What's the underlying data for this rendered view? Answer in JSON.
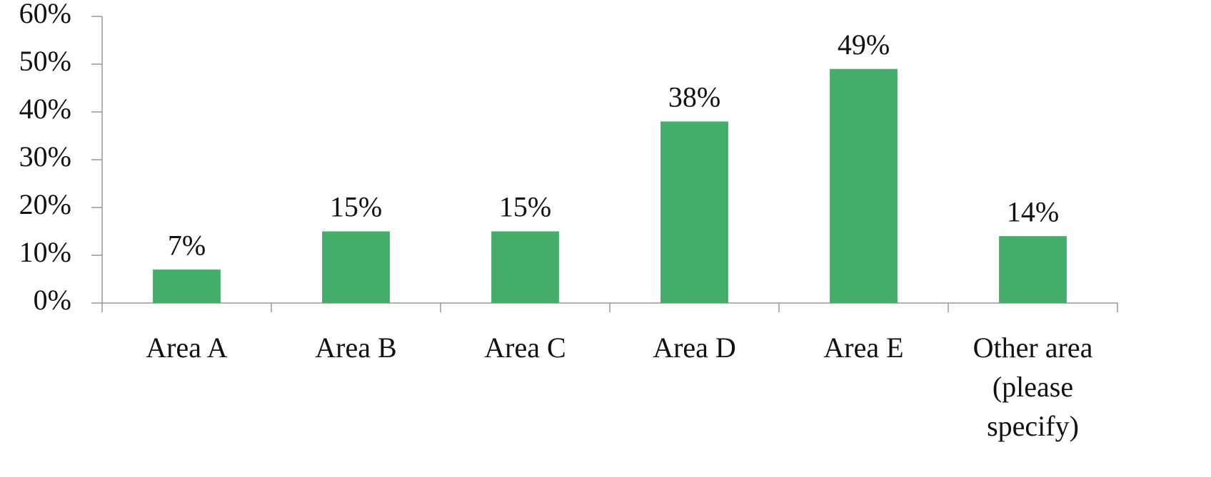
{
  "chart_data": {
    "type": "bar",
    "categories": [
      "Area A",
      "Area B",
      "Area C",
      "Area D",
      "Area E",
      "Other area (please specify)"
    ],
    "values": [
      7,
      15,
      15,
      38,
      49,
      14
    ],
    "value_labels": [
      "7%",
      "15%",
      "15%",
      "38%",
      "49%",
      "14%"
    ],
    "color": "#44ad69",
    "ylim": [
      0,
      60
    ],
    "yticks": [
      {
        "value": 0,
        "label": "0%"
      },
      {
        "value": 10,
        "label": "10%"
      },
      {
        "value": 20,
        "label": "20%"
      },
      {
        "value": 30,
        "label": "30%"
      },
      {
        "value": 40,
        "label": "40%"
      },
      {
        "value": 50,
        "label": "50%"
      },
      {
        "value": 60,
        "label": "60%"
      }
    ],
    "grid": false
  }
}
